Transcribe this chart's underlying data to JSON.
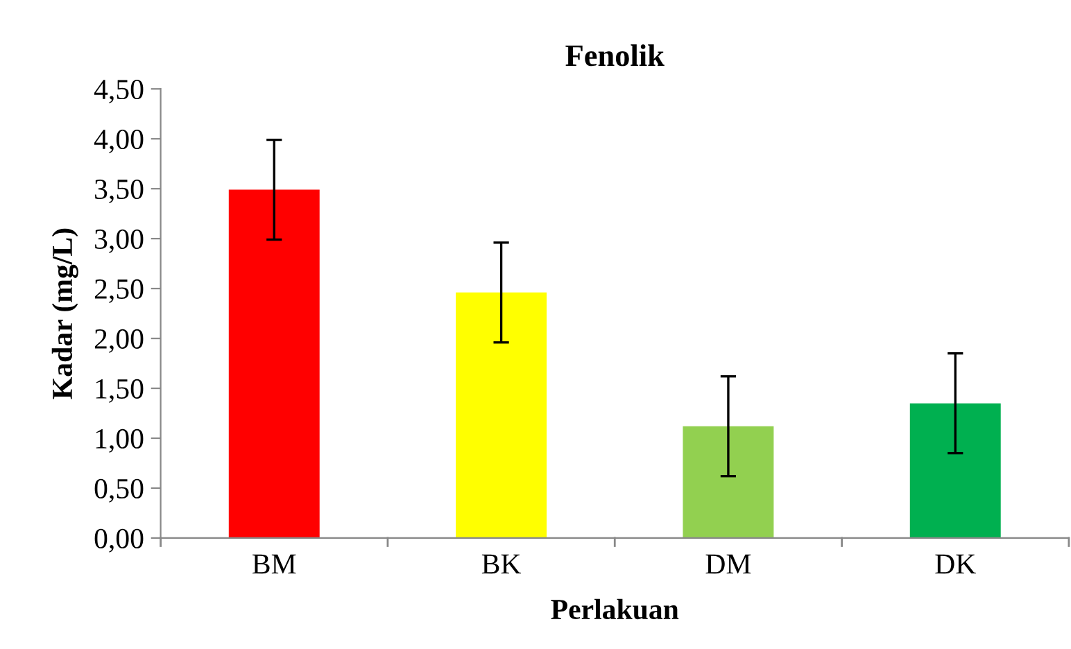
{
  "chart_data": {
    "type": "bar",
    "title": "Fenolik",
    "xlabel": "Perlakuan",
    "ylabel": "Kadar (mg/L)",
    "categories": [
      "BM",
      "BK",
      "DM",
      "DK"
    ],
    "values": [
      3.49,
      2.46,
      1.12,
      1.35
    ],
    "colors": [
      "#ff0000",
      "#ffff00",
      "#92d050",
      "#00b050"
    ],
    "errors": [
      0.5,
      0.5,
      0.5,
      0.5
    ],
    "ylim": [
      0,
      4.5
    ],
    "yticks": [
      {
        "value": 0,
        "label": "0,00"
      },
      {
        "value": 0.5,
        "label": "0,50"
      },
      {
        "value": 1,
        "label": "1,00"
      },
      {
        "value": 1.5,
        "label": "1,50"
      },
      {
        "value": 2,
        "label": "2,00"
      },
      {
        "value": 2.5,
        "label": "2,50"
      },
      {
        "value": 3,
        "label": "3,00"
      },
      {
        "value": 3.5,
        "label": "3,50"
      },
      {
        "value": 4,
        "label": "4,00"
      },
      {
        "value": 4.5,
        "label": "4,50"
      }
    ],
    "grid": false,
    "legend": false
  }
}
